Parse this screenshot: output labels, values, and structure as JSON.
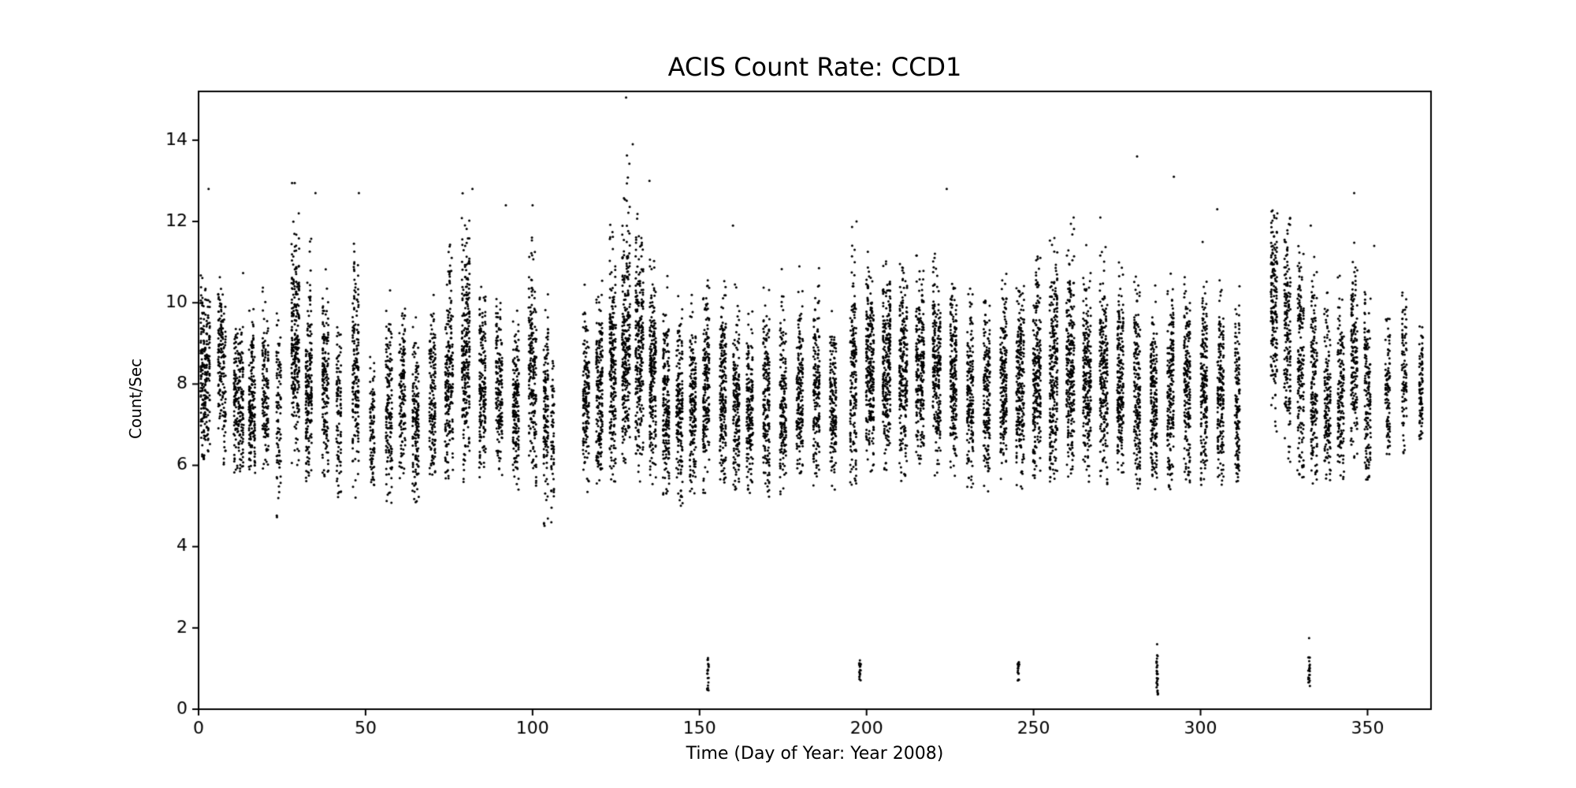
{
  "figure": {
    "background": "#ffffff"
  },
  "chart_data": {
    "type": "scatter",
    "title": "ACIS Count Rate: CCD1",
    "xlabel": "Time (Day of Year: Year 2008)",
    "ylabel": "Count/Sec",
    "xlim": [
      0,
      369
    ],
    "ylim": [
      0,
      15.2
    ],
    "xticks": [
      0,
      50,
      100,
      150,
      200,
      250,
      300,
      350
    ],
    "yticks": [
      0,
      2,
      4,
      6,
      8,
      10,
      12,
      14
    ],
    "grid": false,
    "legend": false,
    "marker_color": "#000000",
    "marker_radius_px": 1.5,
    "seed": 20081,
    "band_fields": [
      "x_center",
      "x_width",
      "n_points",
      "y_mean",
      "y_sd",
      "y_min",
      "y_max"
    ],
    "bands": [
      [
        2,
        3,
        230,
        8.2,
        1.1,
        5.9,
        10.8
      ],
      [
        7,
        2.5,
        160,
        8.4,
        1.0,
        6.0,
        11.2
      ],
      [
        12,
        3,
        210,
        7.6,
        1.0,
        5.8,
        11.4
      ],
      [
        16,
        2,
        170,
        7.3,
        0.9,
        5.7,
        10.2
      ],
      [
        20,
        2,
        130,
        7.9,
        1.0,
        5.9,
        10.6
      ],
      [
        24,
        1.5,
        90,
        6.9,
        1.2,
        4.5,
        9.8
      ],
      [
        29,
        2.5,
        250,
        9.0,
        1.3,
        5.5,
        13.0
      ],
      [
        33,
        2,
        190,
        8.2,
        1.2,
        5.6,
        12.2
      ],
      [
        38,
        2,
        160,
        7.8,
        1.1,
        5.5,
        11.0
      ],
      [
        42,
        1.5,
        100,
        7.2,
        1.0,
        5.2,
        10.4
      ],
      [
        47,
        2,
        170,
        8.2,
        1.2,
        5.1,
        11.7
      ],
      [
        52,
        1.5,
        90,
        7.0,
        0.9,
        5.5,
        9.6
      ],
      [
        57,
        2,
        150,
        7.4,
        1.1,
        5.0,
        11.4
      ],
      [
        61,
        2,
        140,
        7.6,
        1.0,
        5.4,
        10.3
      ],
      [
        65,
        2,
        150,
        7.2,
        1.0,
        5.0,
        9.9
      ],
      [
        70,
        2,
        150,
        7.5,
        1.0,
        5.6,
        10.2
      ],
      [
        75,
        2.5,
        210,
        8.1,
        1.2,
        5.6,
        11.5
      ],
      [
        80,
        2.5,
        250,
        8.6,
        1.4,
        5.5,
        12.8
      ],
      [
        85,
        2,
        180,
        8.0,
        1.2,
        5.6,
        11.9
      ],
      [
        90,
        2,
        160,
        7.6,
        1.0,
        5.5,
        10.3
      ],
      [
        95,
        2,
        170,
        7.4,
        1.0,
        5.3,
        10.4
      ],
      [
        100,
        2.5,
        200,
        8.0,
        1.2,
        5.5,
        12.4
      ],
      [
        104,
        1.5,
        130,
        7.0,
        1.3,
        4.4,
        10.5
      ],
      [
        106,
        1,
        60,
        6.4,
        1.0,
        4.4,
        8.6
      ],
      [
        116,
        2,
        160,
        7.5,
        1.1,
        5.3,
        10.6
      ],
      [
        120,
        2,
        200,
        7.8,
        1.2,
        5.5,
        11.5
      ],
      [
        124,
        2,
        220,
        8.4,
        1.3,
        5.6,
        12.0
      ],
      [
        128,
        2.5,
        270,
        9.1,
        1.5,
        5.6,
        13.9
      ],
      [
        132,
        2.5,
        250,
        8.8,
        1.4,
        5.5,
        13.0
      ],
      [
        136,
        2,
        220,
        8.0,
        1.2,
        5.4,
        11.6
      ],
      [
        140,
        2,
        200,
        7.6,
        1.1,
        5.2,
        10.8
      ],
      [
        144,
        2,
        180,
        7.3,
        1.1,
        5.0,
        10.5
      ],
      [
        148,
        2,
        180,
        7.4,
        1.0,
        5.2,
        10.2
      ],
      [
        152,
        2,
        200,
        7.8,
        1.2,
        5.3,
        10.6
      ],
      [
        157,
        2,
        200,
        7.9,
        1.1,
        5.5,
        10.7
      ],
      [
        161,
        2,
        180,
        7.6,
        1.1,
        5.4,
        10.5
      ],
      [
        165,
        2,
        170,
        7.4,
        1.0,
        5.3,
        10.0
      ],
      [
        170,
        2,
        180,
        7.5,
        1.1,
        5.2,
        10.4
      ],
      [
        175,
        2,
        170,
        7.3,
        1.1,
        5.0,
        11.6
      ],
      [
        180,
        2,
        180,
        7.8,
        1.1,
        5.5,
        10.9
      ],
      [
        185,
        2,
        170,
        7.9,
        1.1,
        5.5,
        11.8
      ],
      [
        190,
        2,
        160,
        7.7,
        1.1,
        5.4,
        10.3
      ],
      [
        196,
        2,
        180,
        8.0,
        1.2,
        5.5,
        11.9
      ],
      [
        201,
        2.5,
        250,
        8.5,
        1.2,
        5.8,
        11.3
      ],
      [
        206,
        2.5,
        250,
        8.4,
        1.2,
        5.6,
        11.2
      ],
      [
        211,
        2.5,
        230,
        8.2,
        1.2,
        5.6,
        11.0
      ],
      [
        216,
        2.5,
        230,
        8.3,
        1.2,
        5.5,
        11.2
      ],
      [
        221,
        2.5,
        230,
        8.2,
        1.2,
        5.6,
        11.4
      ],
      [
        226,
        2,
        200,
        8.0,
        1.1,
        5.6,
        10.7
      ],
      [
        231,
        2,
        180,
        7.8,
        1.1,
        5.4,
        10.5
      ],
      [
        236,
        2,
        180,
        7.7,
        1.1,
        5.3,
        10.4
      ],
      [
        241,
        2,
        200,
        7.9,
        1.1,
        5.5,
        10.8
      ],
      [
        246,
        2.5,
        230,
        8.0,
        1.2,
        5.4,
        11.0
      ],
      [
        251,
        2.5,
        230,
        8.1,
        1.2,
        5.5,
        11.2
      ],
      [
        256,
        2.5,
        250,
        8.4,
        1.3,
        5.5,
        12.2
      ],
      [
        261,
        2.5,
        250,
        8.5,
        1.3,
        5.6,
        12.1
      ],
      [
        266,
        2.5,
        230,
        8.3,
        1.2,
        5.5,
        11.5
      ],
      [
        271,
        2.5,
        230,
        8.2,
        1.2,
        5.5,
        12.1
      ],
      [
        276,
        2,
        210,
        8.0,
        1.2,
        5.4,
        11.0
      ],
      [
        281,
        2,
        190,
        7.9,
        1.2,
        5.4,
        11.2
      ],
      [
        286,
        2,
        190,
        7.6,
        1.1,
        5.2,
        10.8
      ],
      [
        291,
        2,
        190,
        7.8,
        1.2,
        5.4,
        11.3
      ],
      [
        296,
        2,
        190,
        7.9,
        1.1,
        5.5,
        10.8
      ],
      [
        301,
        2,
        190,
        8.0,
        1.2,
        5.5,
        11.6
      ],
      [
        306,
        2,
        180,
        7.8,
        1.1,
        5.5,
        11.0
      ],
      [
        311,
        1.5,
        140,
        7.5,
        1.1,
        5.5,
        10.5
      ],
      [
        322,
        2,
        170,
        9.6,
        1.3,
        6.2,
        12.3
      ],
      [
        326,
        2,
        170,
        9.4,
        1.4,
        5.9,
        12.2
      ],
      [
        330,
        2,
        170,
        8.6,
        1.5,
        5.6,
        11.6
      ],
      [
        334,
        2,
        170,
        8.0,
        1.3,
        5.5,
        11.2
      ],
      [
        338,
        2,
        150,
        7.6,
        1.2,
        5.5,
        10.8
      ],
      [
        342,
        2,
        150,
        7.8,
        1.2,
        5.6,
        10.9
      ],
      [
        346,
        2,
        160,
        8.3,
        1.3,
        5.7,
        11.6
      ],
      [
        350,
        2,
        150,
        8.0,
        1.2,
        5.6,
        10.6
      ],
      [
        356,
        1.5,
        100,
        7.8,
        1.0,
        6.2,
        9.7
      ],
      [
        361,
        1.5,
        90,
        7.9,
        1.0,
        6.3,
        10.9
      ],
      [
        366,
        1.2,
        90,
        8.1,
        0.9,
        6.6,
        9.6
      ]
    ],
    "low_cluster_fields": [
      "x_center",
      "n_points",
      "y_min",
      "y_max"
    ],
    "low_clusters": [
      [
        152.5,
        22,
        0.45,
        1.3
      ],
      [
        198,
        18,
        0.7,
        1.15
      ],
      [
        245.5,
        18,
        0.7,
        1.2
      ],
      [
        287,
        28,
        0.35,
        1.35
      ],
      [
        332.5,
        22,
        0.5,
        1.3
      ]
    ],
    "outliers": [
      [
        3,
        12.8
      ],
      [
        30,
        12.2
      ],
      [
        35,
        12.7
      ],
      [
        48,
        12.7
      ],
      [
        82,
        12.8
      ],
      [
        92,
        12.4
      ],
      [
        100,
        12.4
      ],
      [
        128,
        15.05
      ],
      [
        130,
        13.9
      ],
      [
        135,
        13.0
      ],
      [
        160,
        11.9
      ],
      [
        197,
        12.0
      ],
      [
        224,
        12.8
      ],
      [
        262,
        12.1
      ],
      [
        270,
        12.1
      ],
      [
        281,
        13.6
      ],
      [
        292,
        13.1
      ],
      [
        305,
        12.3
      ],
      [
        323,
        12.2
      ],
      [
        333,
        11.9
      ],
      [
        346,
        12.7
      ],
      [
        352,
        11.4
      ],
      [
        198,
        1.2
      ],
      [
        287,
        1.6
      ],
      [
        332.5,
        1.75
      ]
    ]
  }
}
